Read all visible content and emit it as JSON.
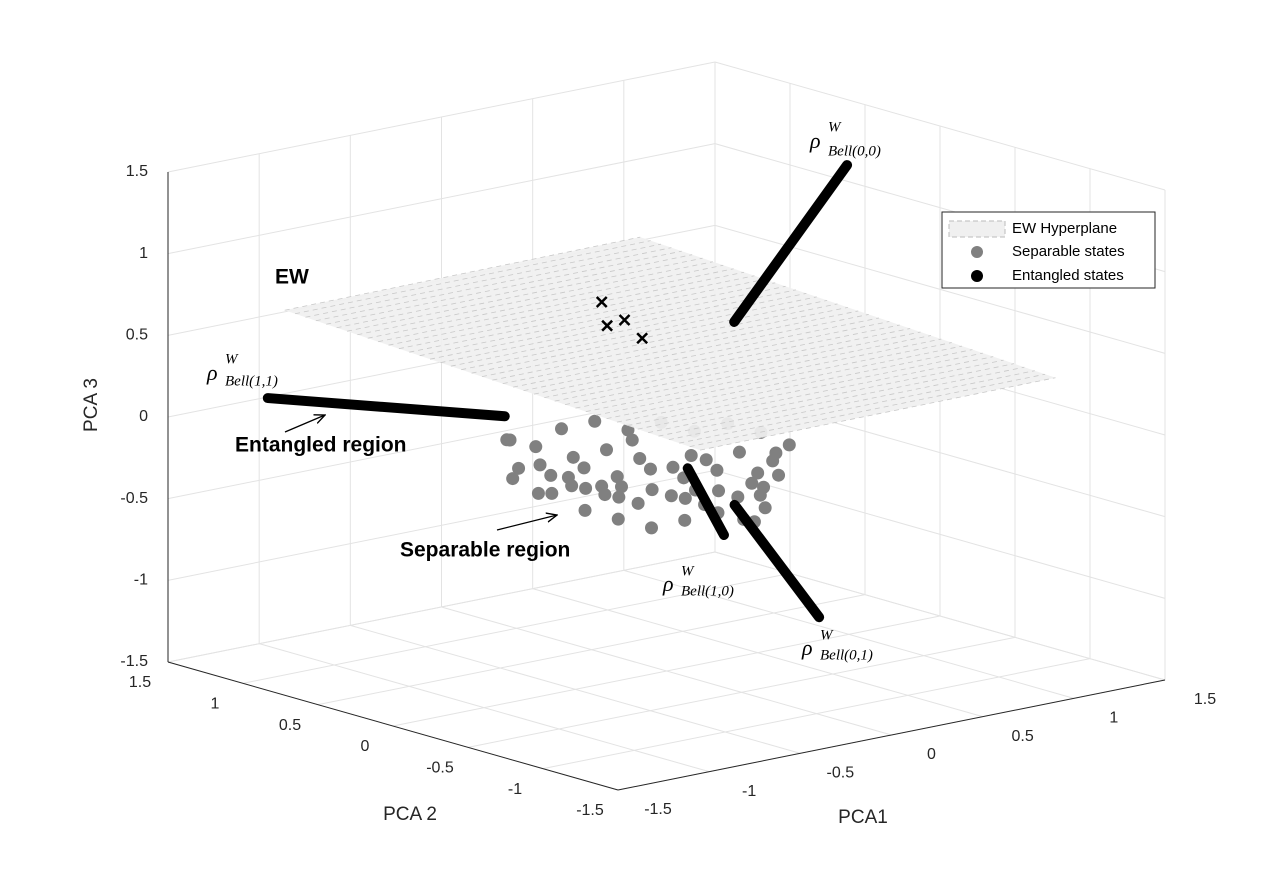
{
  "chart_data": {
    "type": "scatter3d",
    "xlabel": "PCA1",
    "ylabel": "PCA 2",
    "zlabel": "PCA 3",
    "xlim": [
      -1.5,
      1.5
    ],
    "ylim": [
      -1.5,
      1.5
    ],
    "zlim": [
      -1.5,
      1.5
    ],
    "xticks": [
      -1.5,
      -1,
      -0.5,
      0,
      0.5,
      1,
      1.5
    ],
    "yticks": [
      -1.5,
      -1,
      -0.5,
      0,
      0.5,
      1,
      1.5
    ],
    "zticks": [
      -1.5,
      -1,
      -0.5,
      0,
      0.5,
      1,
      1.5
    ],
    "grid": true,
    "legend": "northeast",
    "plane": {
      "name": "EW Hyperplane",
      "color": "#f0f0f0",
      "corners": [
        [
          -0.86,
          1.5,
          0.51
        ],
        [
          1.09,
          1.5,
          0.52
        ],
        [
          1.5,
          -0.77,
          0.16
        ],
        [
          -1.05,
          -1.5,
          0.48
        ]
      ]
    },
    "series": [
      {
        "name": "Separable states",
        "color": "#808080",
        "marker": "o",
        "points": [
          [
            -0.3,
            0.7,
            -0.2
          ],
          [
            -0.2,
            0.6,
            -0.35
          ],
          [
            -0.1,
            0.5,
            -0.3
          ],
          [
            0,
            0.4,
            -0.25
          ],
          [
            0.1,
            0.3,
            -0.3
          ],
          [
            0.2,
            0.2,
            -0.35
          ],
          [
            0.3,
            0.1,
            -0.3
          ],
          [
            0.4,
            0,
            -0.25
          ],
          [
            0.5,
            -0.1,
            -0.3
          ],
          [
            0.55,
            -0.15,
            -0.2
          ],
          [
            -0.35,
            0.6,
            -0.4
          ],
          [
            -0.25,
            0.55,
            -0.5
          ],
          [
            -0.15,
            0.45,
            -0.45
          ],
          [
            -0.05,
            0.35,
            -0.5
          ],
          [
            0.05,
            0.25,
            -0.55
          ],
          [
            0.15,
            0.15,
            -0.5
          ],
          [
            0.25,
            0.05,
            -0.55
          ],
          [
            0.35,
            -0.05,
            -0.5
          ],
          [
            0.45,
            -0.1,
            -0.45
          ],
          [
            0.5,
            0,
            -0.4
          ],
          [
            -0.2,
            0.8,
            -0.25
          ],
          [
            -0.1,
            0.75,
            -0.3
          ],
          [
            0,
            0.7,
            -0.2
          ],
          [
            0.1,
            0.6,
            -0.15
          ],
          [
            0.2,
            0.5,
            -0.2
          ],
          [
            0.3,
            0.4,
            -0.15
          ],
          [
            0.4,
            0.3,
            -0.2
          ],
          [
            0.5,
            0.2,
            -0.15
          ],
          [
            0.6,
            0.1,
            -0.2
          ],
          [
            0.6,
            0,
            -0.3
          ],
          [
            -0.4,
            0.5,
            -0.3
          ],
          [
            -0.3,
            0.4,
            -0.45
          ],
          [
            -0.2,
            0.3,
            -0.55
          ],
          [
            -0.1,
            0.2,
            -0.6
          ],
          [
            0,
            0.1,
            -0.65
          ],
          [
            0.1,
            0,
            -0.6
          ],
          [
            0.2,
            -0.1,
            -0.55
          ],
          [
            0.3,
            -0.15,
            -0.6
          ],
          [
            0.35,
            -0.2,
            -0.45
          ],
          [
            0.45,
            -0.2,
            -0.35
          ],
          [
            0,
            0.55,
            -0.4
          ],
          [
            0.1,
            0.45,
            -0.45
          ],
          [
            0.2,
            0.35,
            -0.4
          ],
          [
            0.3,
            0.25,
            -0.45
          ],
          [
            0.4,
            0.15,
            -0.4
          ],
          [
            -0.1,
            0.65,
            -0.45
          ],
          [
            0.05,
            0.6,
            -0.55
          ],
          [
            0.15,
            0.5,
            -0.6
          ],
          [
            0.25,
            0.4,
            -0.55
          ],
          [
            0.35,
            0.3,
            -0.6
          ],
          [
            0.45,
            0.2,
            -0.55
          ],
          [
            0.55,
            0.1,
            -0.5
          ],
          [
            0.5,
            -0.05,
            -0.6
          ],
          [
            0.4,
            -0.1,
            -0.65
          ],
          [
            -0.25,
            0.35,
            -0.35
          ],
          [
            -0.15,
            0.25,
            -0.4
          ],
          [
            0,
            0.3,
            -0.45
          ],
          [
            0.2,
            0.05,
            -0.45
          ],
          [
            0.3,
            0.2,
            -0.3
          ],
          [
            0.1,
            0.35,
            -0.2
          ]
        ]
      },
      {
        "name": "Entangled states",
        "color": "#000000",
        "marker": "x",
        "points": [
          [
            0.27,
            0.76,
            0.5
          ],
          [
            0.02,
            0.42,
            0.5
          ],
          [
            0.14,
            0.45,
            0.5
          ],
          [
            -0.01,
            0.15,
            0.5
          ]
        ]
      }
    ],
    "witnesses": [
      {
        "label": {
          "symbol": "ρ",
          "superscript": "W",
          "subscript": "Bell(0,0)"
        },
        "points": [
          [
            0.47,
            0.12,
            0.5
          ],
          [
            0.76,
            -0.28,
            1.5
          ]
        ]
      },
      {
        "label": {
          "symbol": "ρ",
          "superscript": "W",
          "subscript": "Bell(1,1)"
        },
        "points": [
          [
            -0.41,
            0.58,
            0
          ],
          [
            -1.15,
            1.26,
            0.1
          ]
        ]
      },
      {
        "label": {
          "symbol": "ρ",
          "superscript": "W",
          "subscript": "Bell(1,0)"
        },
        "points": [
          [
            -0.04,
            -0.19,
            -0.2
          ],
          [
            0.06,
            -0.31,
            -0.6
          ]
        ]
      },
      {
        "label": {
          "symbol": "ρ",
          "superscript": "W",
          "subscript": "Bell(0,1)"
        },
        "points": [
          [
            0.25,
            -0.15,
            -0.5
          ],
          [
            0.36,
            -0.58,
            -1.1
          ]
        ]
      }
    ],
    "annotations": [
      "EW",
      "Entangled region",
      "Separable region"
    ]
  }
}
